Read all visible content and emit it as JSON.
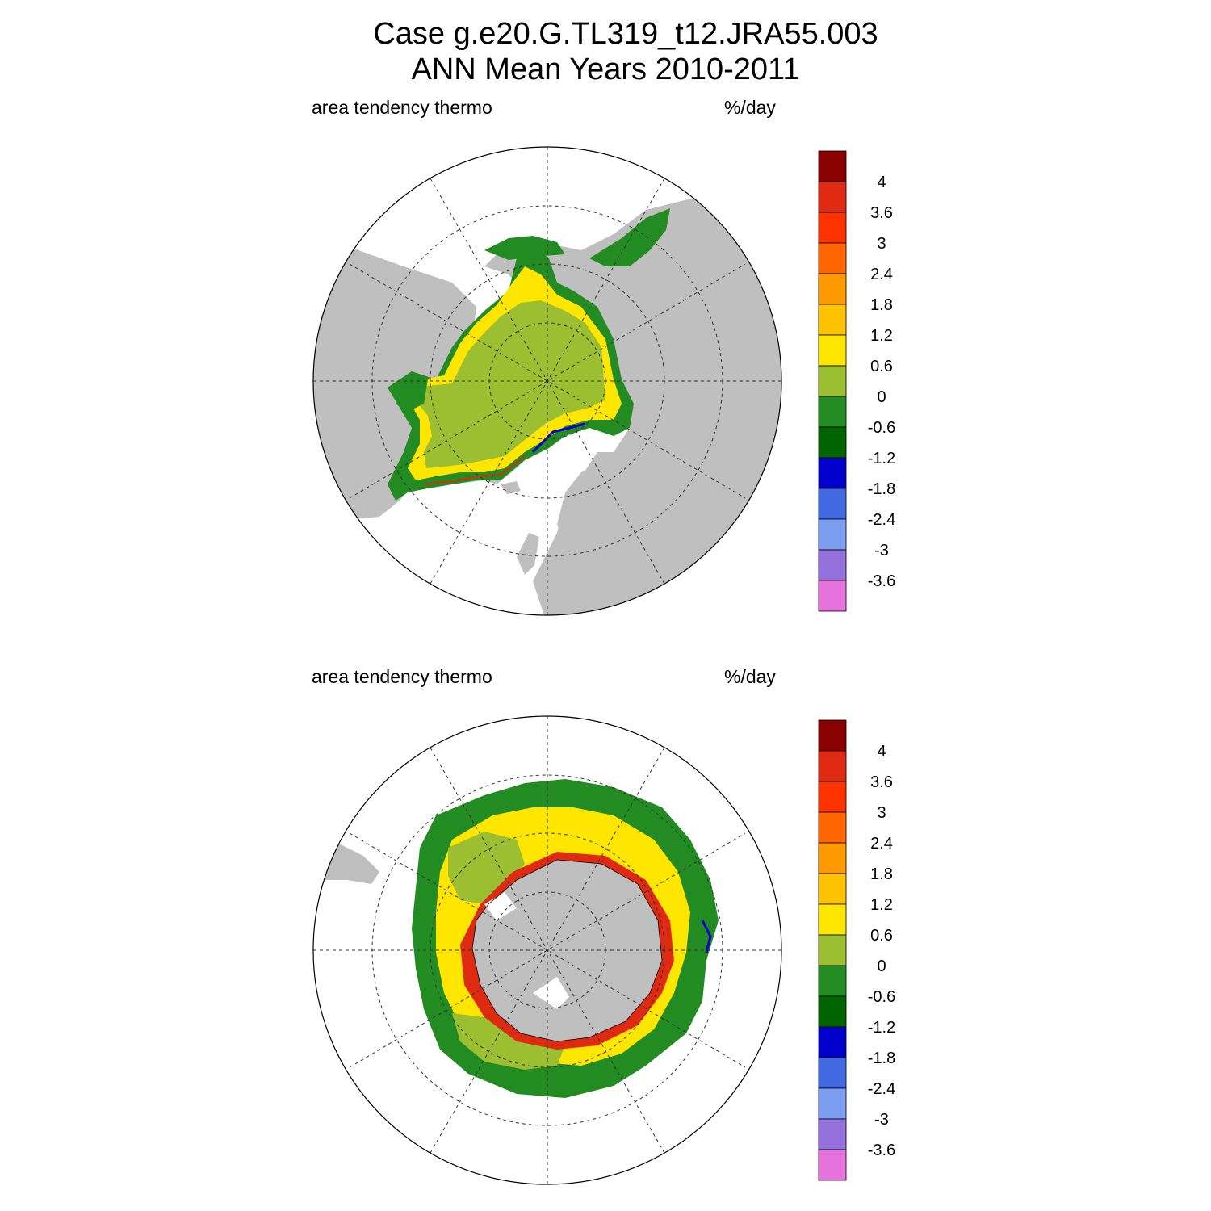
{
  "title_line1": "Case g.e20.G.TL319_t12.JRA55.003",
  "title_line2": "ANN Mean    Years 2010-2011",
  "panels": [
    {
      "variable": "area tendency thermo",
      "units": "%/day",
      "hemisphere": "north"
    },
    {
      "variable": "area tendency thermo",
      "units": "%/day",
      "hemisphere": "south"
    }
  ],
  "colorbar": {
    "labels": [
      "4",
      "3.6",
      "3",
      "2.4",
      "1.8",
      "1.2",
      "0.6",
      "0",
      "-0.6",
      "-1.2",
      "-1.8",
      "-2.4",
      "-3",
      "-3.6"
    ],
    "colors": [
      "#8B0000",
      "#DD2A10",
      "#FF3300",
      "#FF6600",
      "#FF9900",
      "#FFC200",
      "#FFE600",
      "#9BBF30",
      "#228B22",
      "#006400",
      "#0000CD",
      "#4169E1",
      "#7B9EF0",
      "#9370DB",
      "#E673DD"
    ]
  },
  "map_colors": {
    "land": "#BFBFBF",
    "ocean": "#FFFFFF",
    "ice_pack": "#9BBF30",
    "ice_edge_dark": "#228B22",
    "ice_edge_yellow": "#FFE600",
    "ice_edge_orange": "#FF9900",
    "ice_edge_red": "#DD2A10",
    "ice_edge_blue": "#0000CD"
  }
}
